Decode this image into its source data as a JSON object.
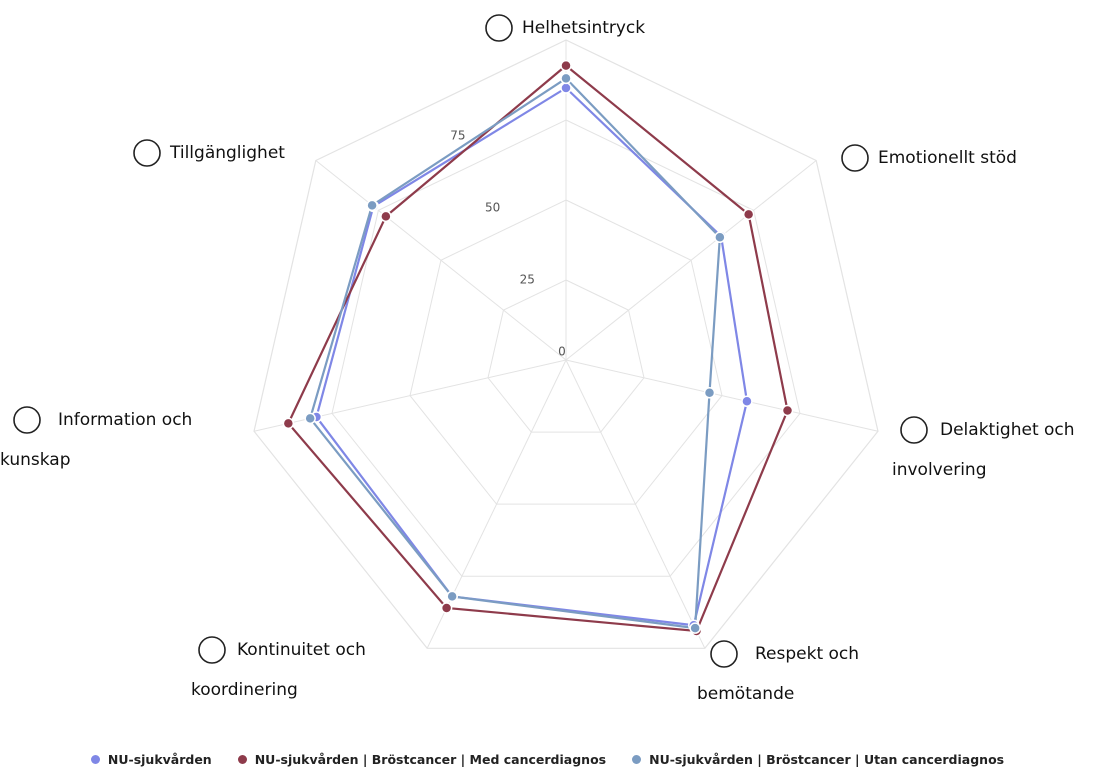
{
  "chart_data": {
    "type": "radar",
    "categories": [
      "Helhetsintryck",
      "Emotionellt stöd",
      "Delaktighet och involvering",
      "Respekt och bemötande",
      "Kontinuitet och koordinering",
      "Information och kunskap",
      "Tillgänglighet"
    ],
    "series": [
      {
        "name": "NU-sjukvården",
        "color": "#7f87e6",
        "values": [
          85,
          62,
          58,
          92,
          82,
          80,
          77
        ]
      },
      {
        "name": "NU-sjukvården | Bröstcancer | Med cancerdiagnos",
        "color": "#8e3b4b",
        "values": [
          92,
          73,
          71,
          94,
          86,
          89,
          72
        ]
      },
      {
        "name": "NU-sjukvården | Bröstcancer | Utan cancerdiagnos",
        "color": "#7b9cc2",
        "values": [
          88,
          61.5,
          46,
          93,
          82,
          82,
          77.5
        ]
      }
    ],
    "ylim": [
      0,
      100
    ],
    "yticks": [
      0,
      25,
      50,
      75
    ],
    "grid": true
  }
}
